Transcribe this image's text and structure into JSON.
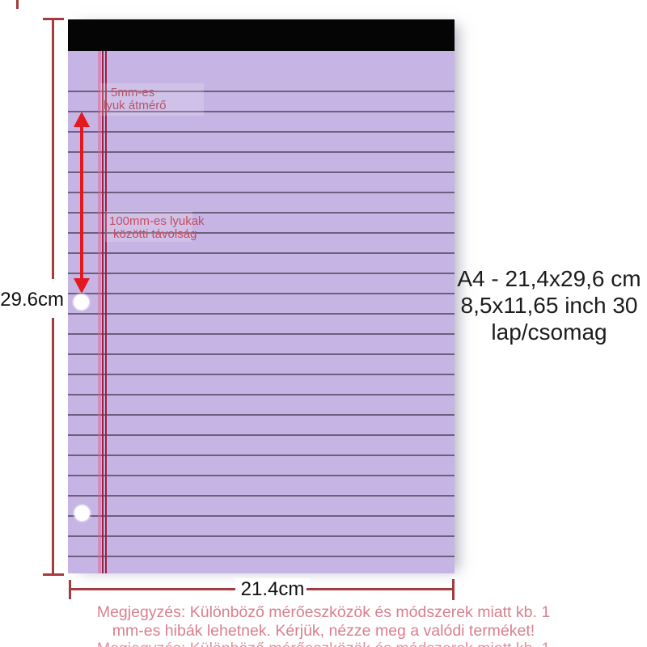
{
  "pad": {
    "type": "lined legal notepad, purple paper, black top binding",
    "holes": [
      "top punch hole",
      "bottom punch hole"
    ]
  },
  "annotations": {
    "hole_diameter": {
      "line1": "5mm-es",
      "line2": "lyuk átmérő"
    },
    "hole_distance": {
      "line1": "100mm-es lyukak",
      "line2": "közötti távolság"
    }
  },
  "dimensions": {
    "height_label": "29.6cm",
    "width_label": "21.4cm"
  },
  "side_label": {
    "lines": [
      "A4 - 21,4x29,6 cm",
      "8,5x11,65 inch 30",
      "lap/csomag"
    ]
  },
  "footer": {
    "lines": [
      "Megjegyzés: Különböző mérőeszközök és módszerek miatt kb. 1",
      "mm-es hibák lehetnek. Kérjük, nézze meg a valódi terméket!"
    ]
  },
  "colors": {
    "paper": "#c6b4e4",
    "binding": "#050505",
    "rule": "#574a63",
    "margin_dark": "#9c1e3e",
    "margin_pink": "#e05c8a",
    "arrow": "#e4191f",
    "dim": "#a43b3e",
    "label": "#111111",
    "spec": "#1c1c1c",
    "ann1": "#b5556b",
    "ann2": "#c74c60",
    "footer": "#d9808e"
  }
}
